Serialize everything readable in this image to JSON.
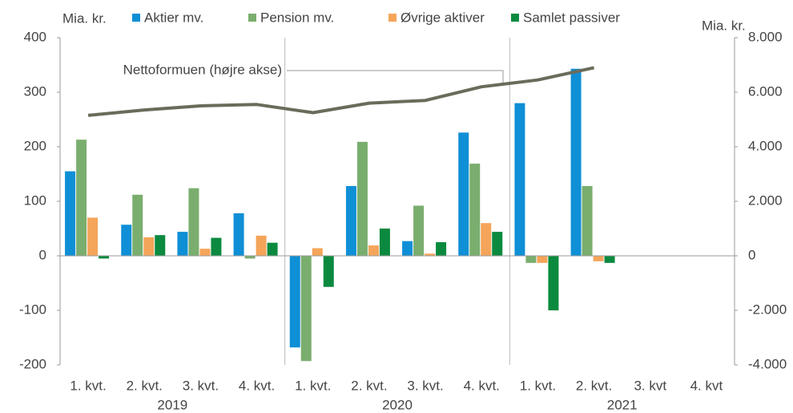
{
  "chart_data": {
    "type": "bar",
    "y_label": "Mia. kr.",
    "y2_label": "Mia. kr.",
    "annotation": "Nettoformuen (højre akse)",
    "categories": [
      "1. kvt.",
      "2. kvt.",
      "3. kvt.",
      "4. kvt.",
      "1. kvt.",
      "2. kvt.",
      "3. kvt.",
      "4. kvt.",
      "1. kvt.",
      "2. kvt.",
      "3. kvt",
      "4. kvt"
    ],
    "years": [
      "2019",
      "2020",
      "2021"
    ],
    "series": [
      {
        "name": "Aktier mv.",
        "color": "#0f8fd6",
        "values": [
          155,
          57,
          44,
          78,
          -168,
          128,
          27,
          226,
          280,
          343,
          null,
          null
        ]
      },
      {
        "name": "Pension mv.",
        "color": "#7aae6e",
        "values": [
          213,
          112,
          124,
          -5,
          -193,
          209,
          92,
          169,
          -13,
          128,
          null,
          null
        ]
      },
      {
        "name": "Øvrige aktiver",
        "color": "#f5a55a",
        "values": [
          70,
          34,
          13,
          37,
          14,
          19,
          4,
          60,
          -13,
          -10,
          null,
          null
        ]
      },
      {
        "name": "Samlet passiver",
        "color": "#0b8a3f",
        "values": [
          -5,
          38,
          33,
          24,
          -57,
          50,
          25,
          44,
          -100,
          -13,
          null,
          null
        ]
      },
      {
        "name": "Nettoformuen",
        "type": "line",
        "axis": "y2",
        "color": "#6b6b5b",
        "values": [
          5150,
          5350,
          5500,
          5550,
          5250,
          5600,
          5700,
          6200,
          6450,
          6900,
          null,
          null
        ]
      }
    ],
    "ylim": [
      -200,
      400
    ],
    "yticks": [
      -200,
      -100,
      0,
      100,
      200,
      300,
      400
    ],
    "y2lim": [
      -4000,
      8000
    ],
    "y2ticks": [
      {
        "value": -4000,
        "label": "-4.000"
      },
      {
        "value": -2000,
        "label": "-2.000"
      },
      {
        "value": 0,
        "label": "0"
      },
      {
        "value": 2000,
        "label": "2.000"
      },
      {
        "value": 4000,
        "label": "4.000"
      },
      {
        "value": 6000,
        "label": "6.000"
      },
      {
        "value": 8000,
        "label": "8.000"
      }
    ]
  }
}
